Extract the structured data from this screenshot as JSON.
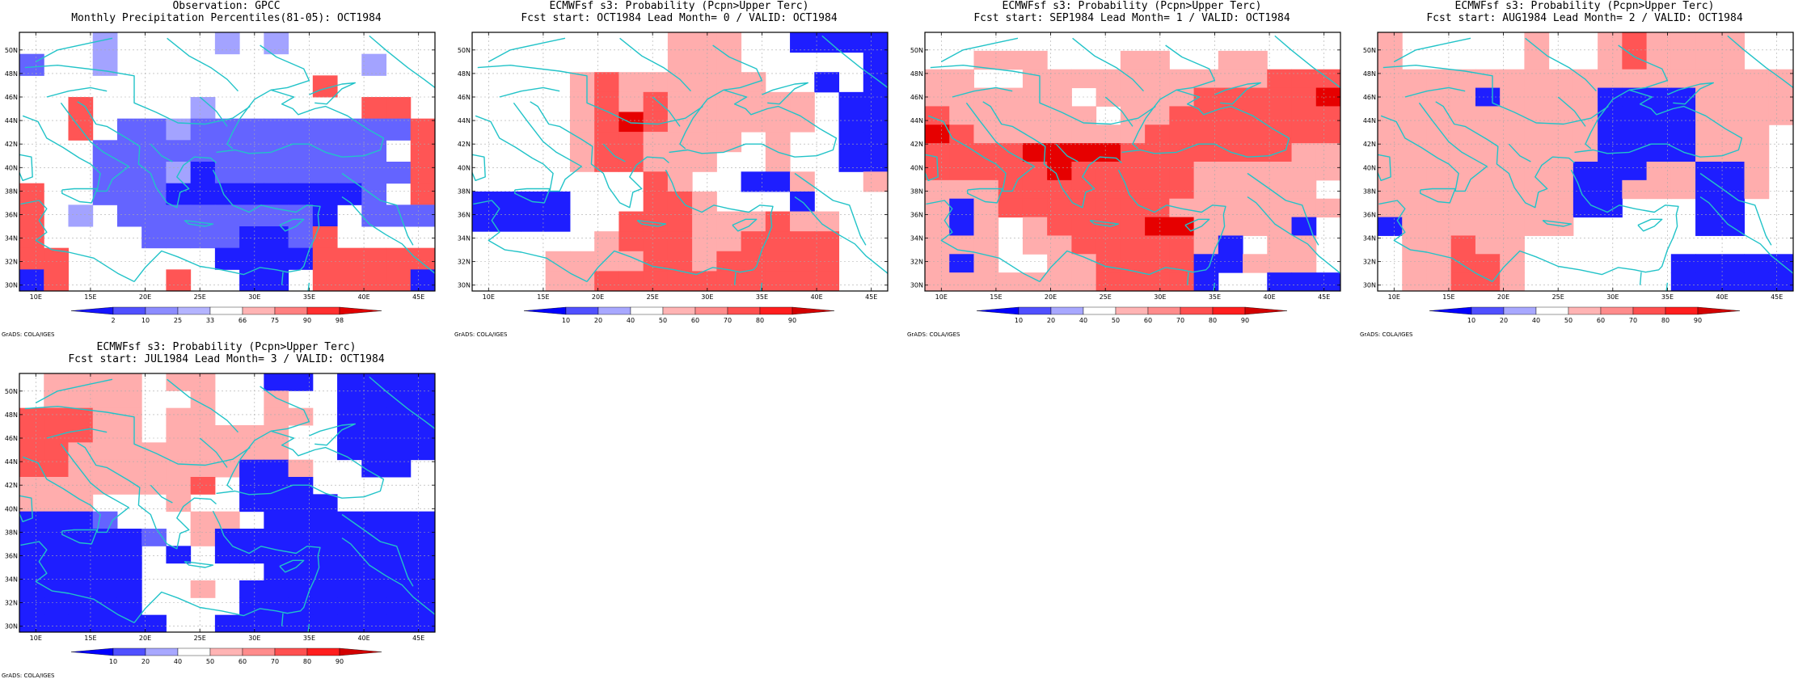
{
  "colors": {
    "coast": "#22c3c8",
    "grid": "#aaaaaa",
    "frame": "#000000"
  },
  "axes": {
    "lon_min": 8.5,
    "lon_max": 46.5,
    "lat_min": 29.5,
    "lat_max": 51.5,
    "lon_ticks": [
      10,
      15,
      20,
      25,
      30,
      35,
      40,
      45
    ],
    "lon_labels": [
      "10E",
      "15E",
      "20E",
      "25E",
      "30E",
      "35E",
      "40E",
      "45E"
    ],
    "lat_ticks": [
      30,
      32,
      34,
      36,
      38,
      40,
      42,
      44,
      46,
      48,
      50
    ],
    "lat_labels": [
      "30N",
      "32N",
      "34N",
      "36N",
      "38N",
      "40N",
      "42N",
      "44N",
      "46N",
      "48N",
      "50N"
    ]
  },
  "panels": [
    {
      "title1": "Observation: GPCC",
      "title2": "Monthly Precipitation Percentiles(81-05): OCT1984",
      "credit": "GrADS: COLA/IGES",
      "legend": {
        "labels": [
          "2",
          "10",
          "25",
          "33",
          "66",
          "75",
          "90",
          "98"
        ],
        "colors": [
          "#1414ff",
          "#5050ff",
          "#8c8cff",
          "#b4b4ff",
          "#ffffff",
          "#ffb4b4",
          "#ff8080",
          "#ff3030",
          "#e00000"
        ]
      },
      "grid_rows": [
        "WWWBWWWWBWBWWWWWW",
        "NWWBWWWWWWWWWWBWW",
        "WWWWWWWWWWWWRWWWW",
        "WWRWWWWBWWWWWWRRW",
        "WWRWNNBNNNNNNNNNR",
        "WWWNNNNNNNNNNNNWR",
        "WWWNNNBDNNNNNNNNR",
        "RWWNNNDDDDDDDDNWR",
        "RWBWNNNNNNNNDWNNN",
        "RWWWWNNNNDDNRWWWW",
        "RRWWWWWWDDDDRRRRR",
        "DRWWWWRWWDDWRRRRD"
      ]
    },
    {
      "title1": "ECMWFsf s3: Probability (Pcpn>Upper Terc)",
      "title2": "Fcst start: OCT1984  Lead Month= 0 / VALID: OCT1984",
      "credit": "GrADS: COLA/IGES",
      "legend": {
        "labels": [
          "10",
          "20",
          "40",
          "50",
          "60",
          "70",
          "80",
          "90"
        ],
        "colors": [
          "#0000ff",
          "#5050ff",
          "#a8a8ff",
          "#ffffff",
          "#ffb4b4",
          "#ff8c8c",
          "#ff5050",
          "#ff1e1e",
          "#d20000"
        ]
      },
      "grid_rows": [
        "WWWWWWWWPPPWWDDDD",
        "WWWWWWWWPPPWWWWWD",
        "WWWWPRPPPPPPWWDWD",
        "WWWWPRPRPPPPPPWDD",
        "WWWWPRSRPPPPPPWDD",
        "WWWWPRRPPPPWPWWDD",
        "WWWWPRRPPPWWPWWDD",
        "WWWWWWWRPWWDDPWWP",
        "DDDDWWWRRPWWWDWWW",
        "DDDDWWRRRPPPRPPWW",
        "WWWWWPRRRPPRRRRWW",
        "WWWPPPPRRPRRRRRWW",
        "WWWPPRRRRRRRRRRWW"
      ]
    },
    {
      "title1": "ECMWFsf s3: Probability (Pcpn>Upper Terc)",
      "title2": "Fcst start: SEP1984  Lead Month= 1 / VALID: OCT1984",
      "credit": "GrADS: COLA/IGES",
      "legend": {
        "labels": [
          "10",
          "20",
          "40",
          "50",
          "60",
          "70",
          "80",
          "90"
        ],
        "colors": [
          "#0000ff",
          "#5050ff",
          "#a8a8ff",
          "#ffffff",
          "#ffb4b4",
          "#ff8c8c",
          "#ff5050",
          "#ff1e1e",
          "#d20000"
        ]
      },
      "grid_rows": [
        "WWWWWWWWWWWWWWWWW",
        "WWPPPWWWPPWWPPWWW",
        "PPWWPPPPPPPPPPRRR",
        "PPPPPPWPPPPRRRRRS",
        "RPPPPPPWPPRRRRRRR",
        "SRPPPPPPPRRRRRRRR",
        "RRRRSSSSRRRRRRRPP",
        "RRRRRSRRRRRPPPPPP",
        "PPPRRRRRRRRPPPPPW",
        "PDPRRRRRRRPPPPPPP",
        "PDPWPRRRRSSPPPPDW",
        "PPPWPPRRRRRPDWPPW",
        "PDPWWPPRRRRDDPPPW",
        "PPPPPPPRRRRDWWDDD"
      ]
    },
    {
      "title1": "ECMWFsf s3: Probability (Pcpn>Upper Terc)",
      "title2": "Fcst start: AUG1984  Lead Month= 2 / VALID: OCT1984",
      "credit": "GrADS: COLA/IGES",
      "legend": {
        "labels": [
          "10",
          "20",
          "40",
          "50",
          "60",
          "70",
          "80",
          "90"
        ],
        "colors": [
          "#0000ff",
          "#5050ff",
          "#a8a8ff",
          "#ffffff",
          "#ffb4b4",
          "#ff8c8c",
          "#ff5050",
          "#ff1e1e",
          "#d20000"
        ]
      },
      "grid_rows": [
        "PWWWWWPWWPRPPPPWW",
        "PWWWWWPWWPRPPPPWW",
        "PPPPPPPPPPPPPPPPP",
        "PPPPDPPPPDDDDPPPP",
        "PPPPPPPPPDDDDPPPP",
        "PPPPPPPPPDDDDPPPW",
        "PPPPPPPPPDDDDPPPW",
        "PPPPPPPPDDDPPDDPW",
        "PPPPPPPPDDPPPDDPW",
        "PPPPPPPPDDWWWDDWW",
        "DPPPPPPPWWWWWDDWW",
        "WPPRPPWWWWWWWWWWW",
        "WPPRRPWWWWWWDDDDD",
        "WPPRRPWWWWWWDDDDD"
      ]
    },
    {
      "title1": "ECMWFsf s3: Probability (Pcpn>Upper Terc)",
      "title2": "Fcst start: JUL1984  Lead Month= 3 / VALID: OCT1984",
      "credit": "GrADS: COLA/IGES",
      "legend": {
        "labels": [
          "10",
          "20",
          "40",
          "50",
          "60",
          "70",
          "80",
          "90"
        ],
        "colors": [
          "#0000ff",
          "#5050ff",
          "#a8a8ff",
          "#ffffff",
          "#ffb4b4",
          "#ff8c8c",
          "#ff5050",
          "#ff1e1e",
          "#d20000"
        ]
      },
      "grid_rows": [
        "WPPPPWPPWWDDWDDDD",
        "WPPPPWWPWWPWWDDDD",
        "RRRPPWPPWWPPWDDDD",
        "RRRPPWPPPPPWWDDDD",
        "RRPPPPPPPPPWWDDDD",
        "RRPPPPPPPDDPWWDDW",
        "PPPPPPPRWDDDWWWWW",
        "PPPWWWPWWDDDDWWWW",
        "DDDNWWWPPWDDDDDDD",
        "DDDDDNWPDDDDDDDDD",
        "DDDDDWDWDDDDDDDDD",
        "DDDDDWWWWWDDDDDDD",
        "DDDDDWWPWDDDDDDDD",
        "DDDDDWWWWDDDDDDDD",
        "DDDDDDWWDDDDDDDDD"
      ]
    }
  ]
}
